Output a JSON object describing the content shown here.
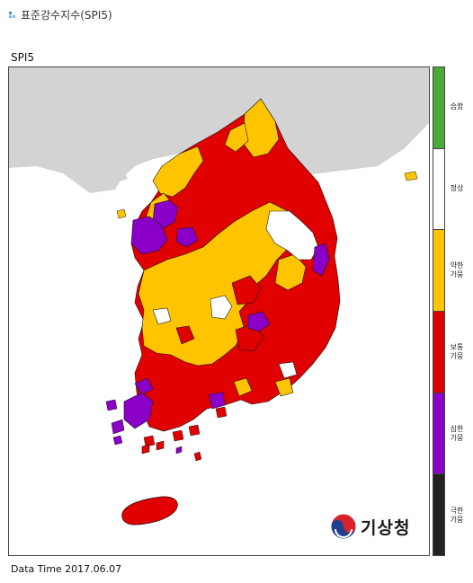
{
  "header": {
    "title": "표준강수지수(SPI5)"
  },
  "map": {
    "subtitle": "SPI5",
    "colors": {
      "land_background": "#d3d3d3",
      "border": "#1a1a1a",
      "class_yellow": "#ffc400",
      "class_red": "#e00000",
      "class_purple": "#8a00c8",
      "class_white": "#ffffff"
    }
  },
  "legend": {
    "items": [
      {
        "label": "습함",
        "color": "#4caa3a"
      },
      {
        "label": "정상",
        "color": "#ffffff"
      },
      {
        "label": "약한\n가뭄",
        "color": "#ffc400"
      },
      {
        "label": "보통\n가뭄",
        "color": "#e00000"
      },
      {
        "label": "심한\n가뭄",
        "color": "#8a00c8"
      },
      {
        "label": "극한\n가뭄",
        "color": "#222222"
      }
    ]
  },
  "logo": {
    "text": "기상청",
    "icon": "kma-taegeuk-icon"
  },
  "footer": {
    "data_time": "Data Time 2017.06.07"
  }
}
